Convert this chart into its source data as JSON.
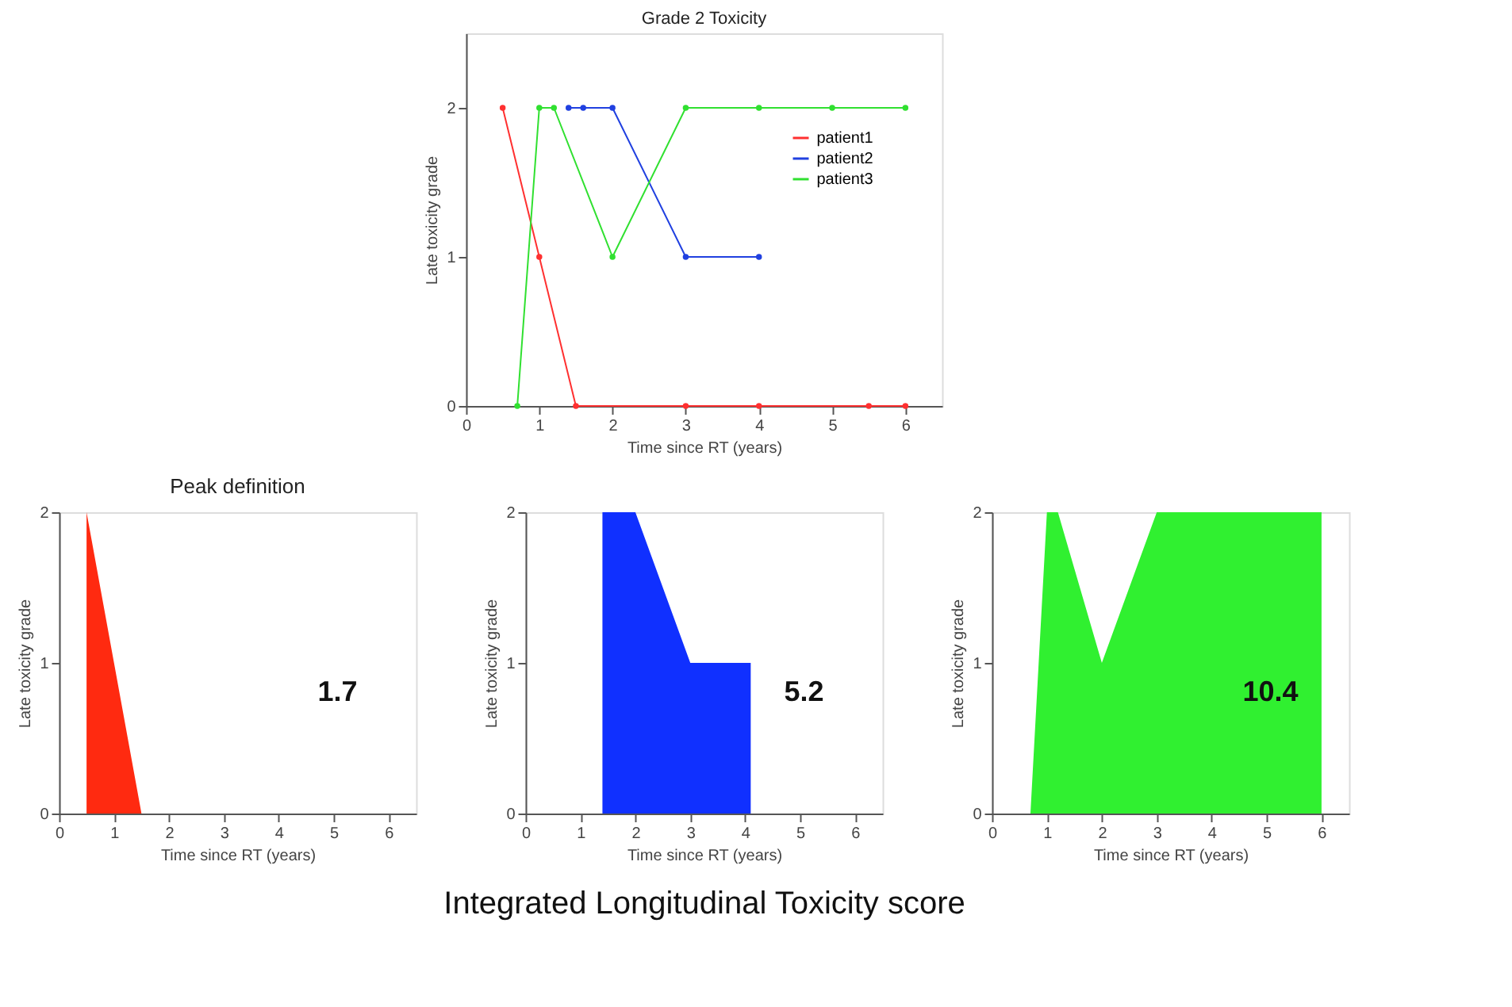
{
  "chart_data": [
    {
      "type": "line",
      "title": "Grade 2 Toxicity",
      "xlabel": "Time since RT (years)",
      "ylabel": "Late toxicity grade",
      "xlim": [
        0,
        6.5
      ],
      "ylim": [
        0,
        2.5
      ],
      "xticks": [
        0,
        1,
        2,
        3,
        4,
        5,
        6
      ],
      "yticks": [
        0,
        1,
        2
      ],
      "grid": false,
      "legend": "top right",
      "marker": "circle",
      "line_style": "solid",
      "series": [
        {
          "name": "patient1",
          "color": "#ff3030",
          "x": [
            0.5,
            1,
            1.5,
            3,
            4,
            5.5,
            6
          ],
          "values": [
            2,
            1,
            0,
            0,
            0,
            0,
            0
          ]
        },
        {
          "name": "patient2",
          "color": "#2040e0",
          "x": [
            1.4,
            1.6,
            2,
            3,
            4
          ],
          "values": [
            2,
            2,
            2,
            1,
            1
          ]
        },
        {
          "name": "patient3",
          "color": "#30e030",
          "x": [
            0.7,
            1,
            1.2,
            2,
            3,
            4,
            5,
            6
          ],
          "values": [
            0,
            2,
            2,
            1,
            2,
            2,
            2,
            2
          ]
        }
      ]
    },
    {
      "type": "area",
      "title": "Peak definition",
      "xlabel": "Time since RT (years)",
      "ylabel": "Late toxicity grade",
      "xlim": [
        0,
        6.5
      ],
      "ylim": [
        0,
        2
      ],
      "xticks": [
        0,
        1,
        2,
        3,
        4,
        5,
        6
      ],
      "yticks": [
        0,
        1,
        2
      ],
      "grid": false,
      "series": [
        {
          "color": "#ff2a10",
          "x": [
            0.5,
            1,
            1.5,
            6
          ],
          "values": [
            2,
            1,
            0,
            0
          ]
        }
      ],
      "annotations": [
        "1.7"
      ]
    },
    {
      "type": "area",
      "xlabel": "Time since RT (years)",
      "ylabel": "Late toxicity grade",
      "xlim": [
        0,
        6.5
      ],
      "ylim": [
        0,
        2
      ],
      "xticks": [
        0,
        1,
        2,
        3,
        4,
        5,
        6
      ],
      "yticks": [
        0,
        1,
        2
      ],
      "grid": false,
      "series": [
        {
          "color": "#1030ff",
          "x": [
            1.4,
            2,
            3,
            4.1
          ],
          "values": [
            2,
            2,
            1,
            1
          ]
        }
      ],
      "annotations": [
        "5.2"
      ]
    },
    {
      "type": "area",
      "xlabel": "Time since RT (years)",
      "ylabel": "Late toxicity grade",
      "xlim": [
        0,
        6.5
      ],
      "ylim": [
        0,
        2
      ],
      "xticks": [
        0,
        1,
        2,
        3,
        4,
        5,
        6
      ],
      "yticks": [
        0,
        1,
        2
      ],
      "grid": false,
      "series": [
        {
          "color": "#30f030",
          "x": [
            0.7,
            1,
            1.2,
            2,
            3,
            6
          ],
          "values": [
            0,
            2,
            2,
            1,
            2,
            2
          ]
        }
      ],
      "annotations": [
        "10.4",
        "Integrated Longitudinal Toxicity score"
      ]
    }
  ]
}
